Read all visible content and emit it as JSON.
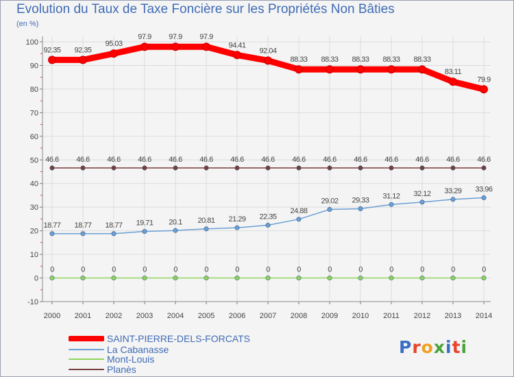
{
  "chart_data": {
    "type": "line",
    "title": "Evolution du Taux de Taxe Foncière sur les Propriétés Non Bâties",
    "unit_label": "(en %)",
    "xlabel": "",
    "ylabel": "",
    "ylim": [
      -10,
      100
    ],
    "yticks": [
      "-10",
      "0",
      "10",
      "20",
      "30",
      "40",
      "50",
      "60",
      "70",
      "80",
      "90",
      "100"
    ],
    "grid": true,
    "legend_position": "bottom-left",
    "categories": [
      "2000",
      "2001",
      "2002",
      "2003",
      "2004",
      "2005",
      "2006",
      "2007",
      "2008",
      "2009",
      "2010",
      "2011",
      "2012",
      "2013",
      "2014"
    ],
    "series": [
      {
        "name": "SAINT-PIERRE-DELS-FORCATS",
        "color": "#ff0000",
        "values": [
          92.35,
          92.35,
          95.03,
          97.9,
          97.9,
          97.9,
          94.41,
          92.04,
          88.33,
          88.33,
          88.33,
          88.33,
          88.33,
          83.11,
          79.9
        ],
        "labels": [
          "92.35",
          "92.35",
          "95.03",
          "97.9",
          "97.9",
          "97.9",
          "94.41",
          "92.04",
          "88.33",
          "88.33",
          "88.33",
          "88.33",
          "88.33",
          "83.11",
          "79.9"
        ]
      },
      {
        "name": "La Cabanasse",
        "color": "#6a9fd4",
        "values": [
          18.77,
          18.77,
          18.77,
          19.71,
          20.1,
          20.81,
          21.29,
          22.35,
          24.88,
          29.02,
          29.33,
          31.12,
          32.12,
          33.29,
          33.96
        ],
        "labels": [
          "18.77",
          "18.77",
          "18.77",
          "19.71",
          "20.1",
          "20.81",
          "21.29",
          "22.35",
          "24.88",
          "29.02",
          "29.33",
          "31.12",
          "32.12",
          "33.29",
          "33.96"
        ]
      },
      {
        "name": "Mont-Louis",
        "color": "#8fd45a",
        "values": [
          0,
          0,
          0,
          0,
          0,
          0,
          0,
          0,
          0,
          0,
          0,
          0,
          0,
          0,
          0
        ],
        "labels": [
          "0",
          "0",
          "0",
          "0",
          "0",
          "0",
          "0",
          "0",
          "0",
          "0",
          "0",
          "0",
          "0",
          "0",
          "0"
        ]
      },
      {
        "name": "Planès",
        "color": "#7a3b3b",
        "values": [
          46.6,
          46.6,
          46.6,
          46.6,
          46.6,
          46.6,
          46.6,
          46.6,
          46.6,
          46.6,
          46.6,
          46.6,
          46.6,
          46.6,
          46.6
        ],
        "labels": [
          "46.6",
          "46.6",
          "46.6",
          "46.6",
          "46.6",
          "46.6",
          "46.6",
          "46.6",
          "46.6",
          "46.6",
          "46.6",
          "46.6",
          "46.6",
          "46.6",
          "46.6"
        ]
      }
    ]
  },
  "logo": {
    "text": "Proxiti",
    "letter_colors": [
      "#3a6fc4",
      "#e8442b",
      "#f0a020",
      "#4aa33a",
      "#3a6fc4",
      "#e8442b",
      "#4aa33a"
    ]
  }
}
